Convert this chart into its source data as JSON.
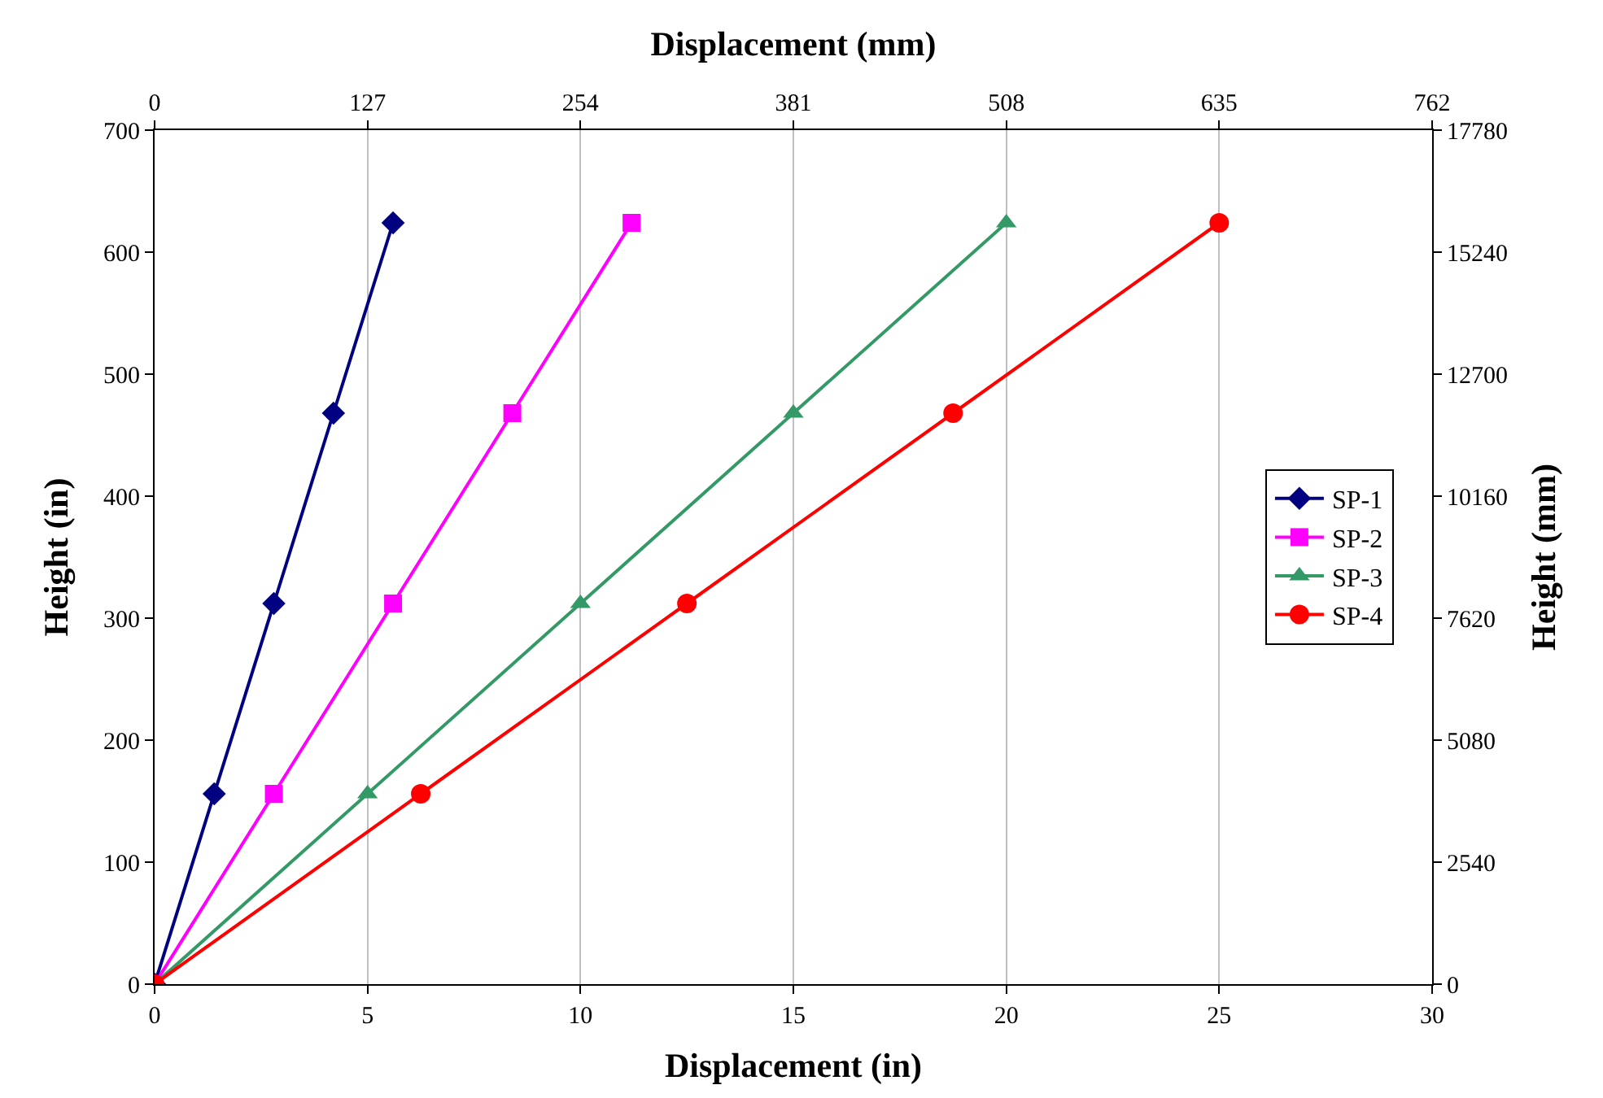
{
  "chart_data": {
    "type": "line",
    "xlabel": "Displacement (in)",
    "x2label": "Displacement (mm)",
    "ylabel": "Height (in)",
    "y2label": "Height (mm)",
    "xlim": [
      0,
      30
    ],
    "xticks": [
      0,
      5,
      10,
      15,
      20,
      25,
      30
    ],
    "x2lim": [
      0,
      762
    ],
    "x2ticks": [
      0,
      127,
      254,
      381,
      508,
      635,
      762
    ],
    "ylim": [
      0,
      700
    ],
    "yticks": [
      0,
      100,
      200,
      300,
      400,
      500,
      600,
      700
    ],
    "y2lim": [
      0,
      17780
    ],
    "y2ticks": [
      0,
      2540,
      5080,
      7620,
      10160,
      12700,
      15240,
      17780
    ],
    "grid": "x",
    "legend": "right",
    "line_style": "solid",
    "series": [
      {
        "name": "SP-1",
        "color": "#000080",
        "marker": "diamond",
        "x": [
          0,
          1.4,
          2.8,
          4.2,
          5.6
        ],
        "values": [
          0,
          156,
          312,
          468,
          624
        ]
      },
      {
        "name": "SP-2",
        "color": "#ff00ff",
        "marker": "square",
        "x": [
          0,
          2.8,
          5.6,
          8.4,
          11.2
        ],
        "values": [
          0,
          156,
          312,
          468,
          624
        ]
      },
      {
        "name": "SP-3",
        "color": "#339966",
        "marker": "triangle",
        "x": [
          0,
          5,
          10,
          15,
          20
        ],
        "values": [
          0,
          156,
          312,
          468,
          624
        ]
      },
      {
        "name": "SP-4",
        "color": "#ff0000",
        "marker": "circle",
        "x": [
          0,
          6.25,
          12.5,
          18.75,
          25
        ],
        "values": [
          0,
          156,
          312,
          468,
          624
        ]
      }
    ]
  }
}
